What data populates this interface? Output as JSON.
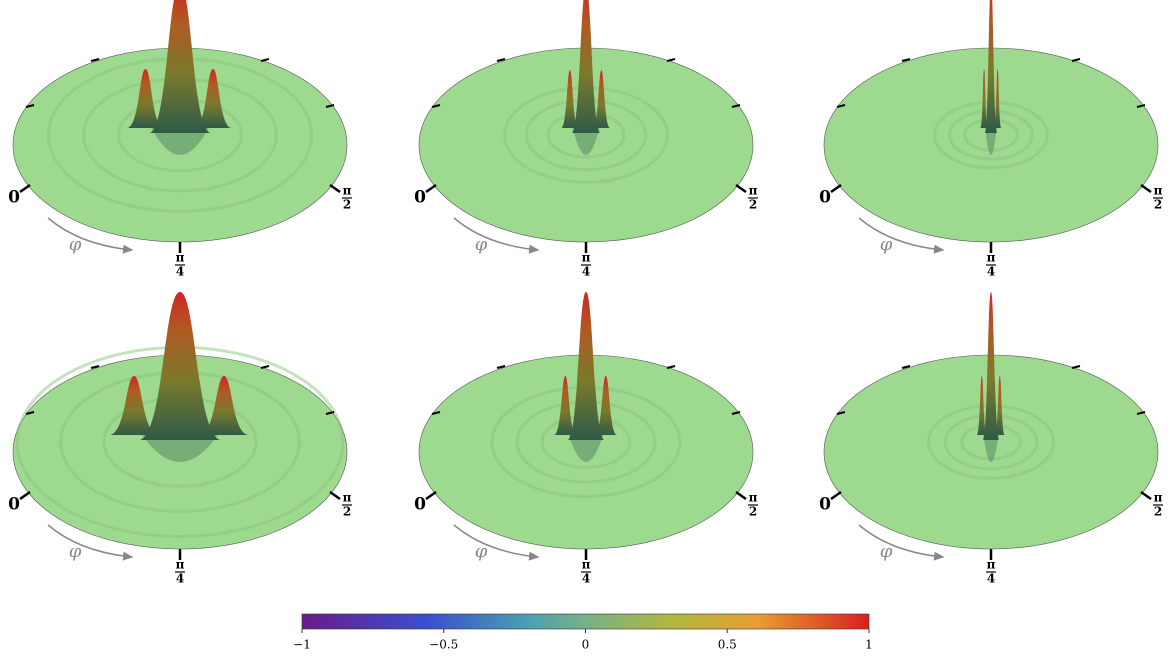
{
  "panels": [
    {
      "label_left": "0",
      "label_right": {
        "num": "π",
        "den": "2"
      },
      "label_bottom": {
        "num": "π",
        "den": "4"
      },
      "axis_symbol": "φ"
    },
    {
      "label_left": "0",
      "label_right": {
        "num": "π",
        "den": "2"
      },
      "label_bottom": {
        "num": "π",
        "den": "4"
      },
      "axis_symbol": "φ"
    },
    {
      "label_left": "0",
      "label_right": {
        "num": "π",
        "den": "2"
      },
      "label_bottom": {
        "num": "π",
        "den": "4"
      },
      "axis_symbol": "φ"
    },
    {
      "label_left": "0",
      "label_right": {
        "num": "π",
        "den": "2"
      },
      "label_bottom": {
        "num": "π",
        "den": "4"
      },
      "axis_symbol": "φ"
    },
    {
      "label_left": "0",
      "label_right": {
        "num": "π",
        "den": "2"
      },
      "label_bottom": {
        "num": "π",
        "den": "4"
      },
      "axis_symbol": "φ"
    },
    {
      "label_left": "0",
      "label_right": {
        "num": "π",
        "den": "2"
      },
      "label_bottom": {
        "num": "π",
        "den": "4"
      },
      "axis_symbol": "φ"
    }
  ],
  "colorbar": {
    "lim": [
      -1,
      1
    ],
    "ticks": [
      {
        "value": -1,
        "label": "−1"
      },
      {
        "value": -0.5,
        "label": "−0.5"
      },
      0,
      0.5,
      1
    ]
  }
}
